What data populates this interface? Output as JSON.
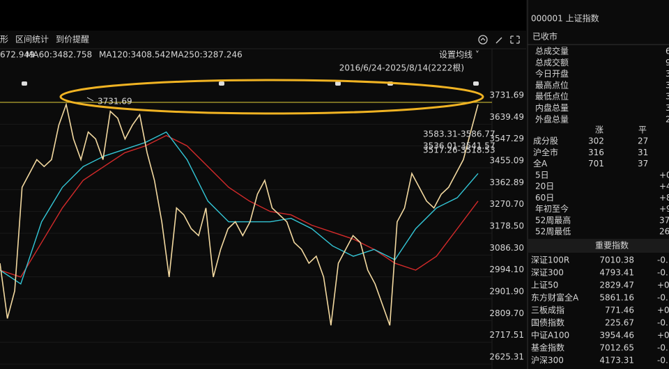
{
  "toolbar": {
    "tabs": [
      "形",
      "区间统计",
      "到价提醒"
    ]
  },
  "legend": {
    "items": [
      {
        "text": "672.949",
        "color": "#c8d84a"
      },
      {
        "text": "MA60:3482.758",
        "color": "#e8e8e8"
      },
      {
        "text": "MA120:3408.542",
        "color": "#33c6d6"
      },
      {
        "text": "MA250:3287.246",
        "color": "#e83a3a"
      }
    ],
    "settings": "设置均线 ˅"
  },
  "range_label": "2016/6/24-2025/8/14(2222根)",
  "chart": {
    "ylim": [
      2625.31,
      3731.69
    ],
    "yticks": [
      3731.69,
      3639.49,
      3547.29,
      3455.09,
      3362.89,
      {
        "value": 3270.7,
        "label": "3270.70"
      },
      {
        "value": 3178.5,
        "label": "3178.50"
      },
      {
        "value": 3086.3,
        "label": "3086.30"
      },
      {
        "value": 2994.1,
        "label": "2994.10"
      },
      {
        "value": 2901.9,
        "label": "2901.90"
      },
      {
        "value": 2809.7,
        "label": "2809.70"
      },
      2717.51,
      2625.31
    ],
    "level_line": 3731.69,
    "level_label": "3731.69",
    "range_notes": [
      "3583.31-3586.77",
      "3536.01-3541.57",
      "3517.26-3518.53"
    ],
    "series": [
      {
        "color": "#f3d9a0",
        "values": [
          3051.8,
          2818.4,
          2935.1,
          3372.8,
          3431.1,
          3489.5,
          3460.3,
          3489.5,
          3635.4,
          3722.9,
          3577.0,
          3489.5,
          3606.2,
          3577.0,
          3489.5,
          3693.8,
          3664.6,
          3577.0,
          3635.4,
          3679.2,
          3518.7,
          3402.0,
          3226.9,
          2993.4,
          3285.2,
          3256.1,
          3197.7,
          3168.5,
          3285.2,
          2993.4,
          3110.2,
          3197.7,
          3226.9,
          3168.5,
          3226.9,
          3343.6,
          3402.0,
          3285.2,
          3256.1,
          3226.9,
          3139.3,
          3110.2,
          3051.8,
          3081.0,
          2993.4,
          2789.2,
          3051.8,
          3110.2,
          3168.5,
          3139.3,
          3022.6,
          2964.3,
          2876.7,
          2789.2,
          3226.9,
          3285.2,
          3431.1,
          3372.8,
          3314.4,
          3285.2,
          3343.6,
          3372.8,
          3431.1,
          3489.5,
          3606.2,
          3722.9
        ]
      },
      {
        "color": "#33c6d6",
        "values": [
          3022.6,
          2964.3,
          3226.9,
          3372.8,
          3460.3,
          3504.1,
          3533.3,
          3562.5,
          3606.2,
          3489.5,
          3314.4,
          3226.9,
          3226.9,
          3226.9,
          3241.5,
          3197.7,
          3124.8,
          3081.0,
          3110.2,
          3066.4,
          3197.7,
          3285.2,
          3329.0,
          3431.1
        ]
      },
      {
        "color": "#d42a2a",
        "values": [
          3022.6,
          2993.4,
          3139.3,
          3285.2,
          3402.0,
          3460.3,
          3518.7,
          3547.9,
          3591.6,
          3547.9,
          3460.3,
          3372.8,
          3314.4,
          3270.7,
          3256.1,
          3212.3,
          3183.1,
          3153.9,
          3110.2,
          3051.8,
          3022.6,
          3081.0,
          3197.7,
          3314.4
        ]
      }
    ]
  },
  "quote": {
    "title": "000001 上证指数",
    "status": "已收市",
    "stats": [
      {
        "label": "总成交量",
        "value": "6",
        "color": "#e8e8e8"
      },
      {
        "label": "总成交额",
        "value": "94",
        "color": "#e8e8e8"
      },
      {
        "label": "今日开盘",
        "value": "36",
        "color": "#ff4040"
      },
      {
        "label": "最高点位",
        "value": "37",
        "color": "#ff4040"
      },
      {
        "label": "最低点位",
        "value": "36",
        "color": "#2ecc40"
      },
      {
        "label": "内盘总量",
        "value": "3",
        "color": "#2ecc40"
      },
      {
        "label": "外盘总量",
        "value": "2",
        "color": "#ff4040"
      }
    ],
    "breadth": {
      "headers": [
        "涨",
        "平"
      ],
      "rows": [
        {
          "label": "成分股",
          "up": 302,
          "flat": 27
        },
        {
          "label": "沪全市",
          "up": 316,
          "flat": 31
        },
        {
          "label": "全A",
          "up": 701,
          "flat": 37
        }
      ]
    },
    "changes": [
      {
        "label": "5日",
        "value": "+0"
      },
      {
        "label": "20日",
        "value": "+4"
      },
      {
        "label": "60日",
        "value": "+8"
      },
      {
        "label": "年初至今",
        "value": "+9"
      },
      {
        "label": "52周最高",
        "value": "370"
      },
      {
        "label": "52周最低",
        "value": "268"
      }
    ],
    "index_title": "重要指数",
    "indices": [
      {
        "name": "深证100R",
        "price": 7010.38,
        "change": "-0."
      },
      {
        "name": "深证300",
        "price": 4793.41,
        "change": "-0."
      },
      {
        "name": "上证50",
        "price": 2829.47,
        "change": "+0."
      },
      {
        "name": "东方财富全A",
        "price": 5861.16,
        "change": "-0."
      },
      {
        "name": "三板成指",
        "price": 771.46,
        "change": "+0."
      },
      {
        "name": "国债指数",
        "price": 225.67,
        "change": "-0."
      },
      {
        "name": "中证A100",
        "price": 3954.46,
        "change": "+0."
      },
      {
        "name": "基金指数",
        "price": 7012.65,
        "change": "-0."
      },
      {
        "name": "沪深300",
        "price": 4173.31,
        "change": "-0."
      }
    ]
  }
}
